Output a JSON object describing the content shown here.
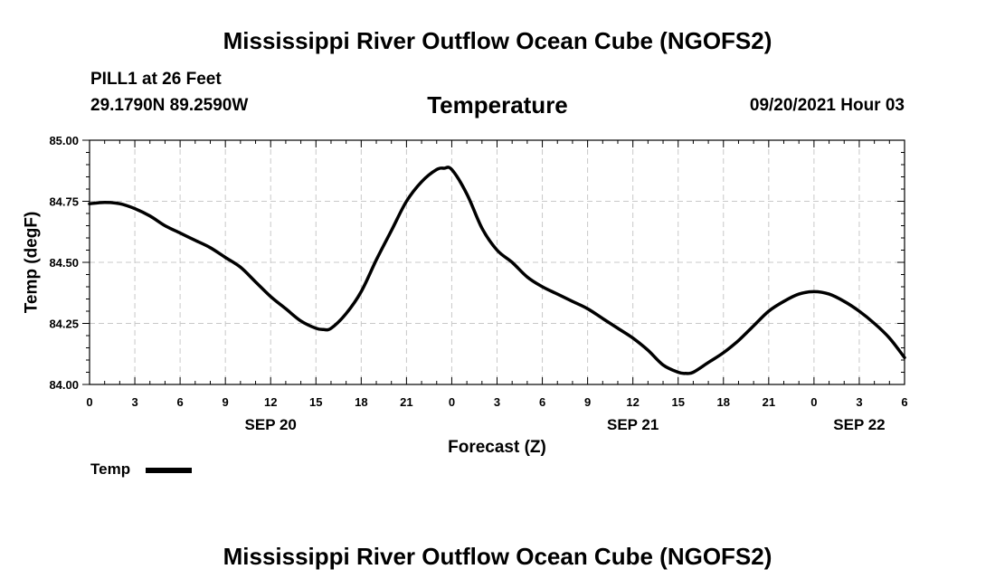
{
  "header": {
    "title_top": "Mississippi River Outflow Ocean Cube (NGOFS2)",
    "station": "PILL1 at 26 Feet",
    "coords": "29.1790N  89.2590W",
    "datetime": "09/20/2021 Hour 03",
    "title_bottom": "Mississippi River Outflow Ocean Cube (NGOFS2)"
  },
  "chart_data": {
    "type": "line",
    "title": "Temperature",
    "xlabel": "Forecast (Z)",
    "ylabel": "Temp (degF)",
    "ylim": [
      84.0,
      85.0
    ],
    "xlim": [
      0,
      54
    ],
    "yticks": [
      "84.00",
      "84.25",
      "84.50",
      "84.75",
      "85.00"
    ],
    "xticks": [
      {
        "hour": 0,
        "label": "0"
      },
      {
        "hour": 3,
        "label": "3"
      },
      {
        "hour": 6,
        "label": "6"
      },
      {
        "hour": 9,
        "label": "9"
      },
      {
        "hour": 12,
        "label": "12"
      },
      {
        "hour": 15,
        "label": "15"
      },
      {
        "hour": 18,
        "label": "18"
      },
      {
        "hour": 21,
        "label": "21"
      },
      {
        "hour": 24,
        "label": "0"
      },
      {
        "hour": 27,
        "label": "3"
      },
      {
        "hour": 30,
        "label": "6"
      },
      {
        "hour": 33,
        "label": "9"
      },
      {
        "hour": 36,
        "label": "12"
      },
      {
        "hour": 39,
        "label": "15"
      },
      {
        "hour": 42,
        "label": "18"
      },
      {
        "hour": 45,
        "label": "21"
      },
      {
        "hour": 48,
        "label": "0"
      },
      {
        "hour": 51,
        "label": "3"
      },
      {
        "hour": 54,
        "label": "6"
      }
    ],
    "date_labels": [
      {
        "hour": 12,
        "label": "SEP 20"
      },
      {
        "hour": 36,
        "label": "SEP 21"
      },
      {
        "hour": 51,
        "label": "SEP 22"
      }
    ],
    "grid": true,
    "series": [
      {
        "name": "Temp",
        "color": "#000000",
        "x": [
          0,
          1,
          2,
          3,
          4,
          5,
          6,
          7,
          8,
          9,
          10,
          11,
          12,
          13,
          14,
          15,
          15.5,
          16,
          17,
          18,
          19,
          20,
          21,
          22,
          23,
          23.5,
          24,
          25,
          26,
          27,
          28,
          29,
          30,
          31,
          32,
          33,
          34,
          35,
          36,
          37,
          38,
          39,
          39.5,
          40,
          41,
          42,
          43,
          44,
          45,
          46,
          47,
          48,
          49,
          50,
          51,
          52,
          53,
          54
        ],
        "values": [
          84.74,
          84.745,
          84.74,
          84.72,
          84.69,
          84.65,
          84.62,
          84.59,
          84.56,
          84.52,
          84.48,
          84.42,
          84.36,
          84.31,
          84.26,
          84.23,
          84.225,
          84.23,
          84.29,
          84.38,
          84.51,
          84.63,
          84.75,
          84.83,
          84.88,
          84.885,
          84.88,
          84.78,
          84.64,
          84.55,
          84.5,
          84.44,
          84.4,
          84.37,
          84.34,
          84.31,
          84.27,
          84.23,
          84.19,
          84.14,
          84.08,
          84.05,
          84.045,
          84.05,
          84.09,
          84.13,
          84.18,
          84.24,
          84.3,
          84.34,
          84.37,
          84.38,
          84.37,
          84.34,
          84.3,
          84.25,
          84.19,
          84.11
        ]
      }
    ],
    "legend": [
      {
        "label": "Temp"
      }
    ]
  }
}
